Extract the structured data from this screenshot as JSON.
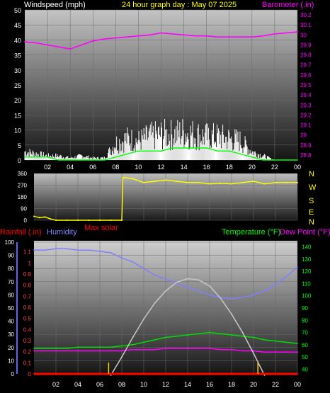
{
  "header": {
    "windspeed_label": "Windspeed (mph)",
    "title": "24 hour graph day : May 07 2025",
    "barometer_label": "Barometer (.in)"
  },
  "colors": {
    "background": "#000000",
    "wind_speed": "#ffffff",
    "wind_avg": "#00ff00",
    "barometer": "#ff00ff",
    "direction": "#ffff00",
    "humidity": "#8080ff",
    "temperature": "#00dd00",
    "dewpoint": "#ff00ff",
    "rain": "#ff0000",
    "solar": "#c8c8c8"
  },
  "direction_panel": {
    "compass": [
      "N",
      "W",
      "S",
      "E",
      "N"
    ],
    "max_solar_label": "Max solar"
  },
  "bottom_panel": {
    "rainfall_label": "Rainfall (.in)",
    "humidity_label": "Humidity",
    "temperature_label": "Temperature (°F)",
    "dewpoint_label": "Dew Point (°F)"
  },
  "chart_data": [
    {
      "type": "line",
      "name": "wind-barometer",
      "x_ticks": [
        "02",
        "04",
        "06",
        "08",
        "10",
        "12",
        "14",
        "16",
        "18",
        "20",
        "22",
        "00"
      ],
      "y_left_ticks": [
        0,
        5,
        10,
        15,
        20,
        25,
        30,
        35,
        40,
        45,
        50
      ],
      "y_left_range": [
        0,
        50
      ],
      "y_right_ticks": [
        "28.8",
        "28.9",
        "29",
        "29.1",
        "29.2",
        "29.3",
        "29.4",
        "29.5",
        "29.6",
        "29.7",
        "29.8",
        "29.9",
        "30",
        "30.1",
        "30.2"
      ],
      "y_right_range": [
        28.75,
        30.25
      ],
      "series": [
        {
          "name": "Barometer (.in)",
          "axis": "right",
          "x": [
            0,
            1,
            2,
            3,
            4,
            5,
            6,
            7,
            8,
            9,
            10,
            11,
            12,
            13,
            14,
            15,
            16,
            17,
            18,
            19,
            20,
            21,
            22,
            23,
            24
          ],
          "values": [
            29.93,
            29.92,
            29.9,
            29.88,
            29.86,
            29.9,
            29.94,
            29.96,
            29.97,
            29.98,
            29.99,
            30.0,
            30.02,
            30.01,
            30.0,
            29.99,
            29.99,
            29.98,
            29.98,
            29.98,
            29.98,
            29.99,
            30.01,
            30.02,
            30.03
          ]
        },
        {
          "name": "Windspeed (mph)",
          "axis": "left",
          "x": [
            0,
            1,
            2,
            3,
            4,
            5,
            6,
            7,
            8,
            9,
            10,
            11,
            12,
            13,
            14,
            15,
            16,
            17,
            18,
            19,
            20,
            21,
            22,
            23,
            24
          ],
          "values": [
            4,
            3,
            2,
            2,
            1,
            2,
            1,
            1,
            8,
            10,
            9,
            11,
            12,
            12,
            13,
            12,
            11,
            11,
            10,
            9,
            4,
            2,
            0,
            0,
            0
          ]
        },
        {
          "name": "Avg wind",
          "axis": "left",
          "x": [
            0,
            1,
            2,
            3,
            4,
            5,
            6,
            7,
            8,
            9,
            10,
            11,
            12,
            13,
            14,
            15,
            16,
            17,
            18,
            19,
            20,
            21,
            22,
            23,
            24
          ],
          "values": [
            1,
            1,
            1,
            0,
            0,
            0,
            0,
            0,
            1,
            2,
            3,
            3,
            3,
            4,
            4,
            4,
            4,
            3,
            3,
            2,
            1,
            0,
            0,
            0,
            0
          ]
        }
      ]
    },
    {
      "type": "line",
      "name": "wind-direction",
      "y_ticks": [
        0,
        90,
        180,
        270,
        360
      ],
      "y_range": [
        0,
        360
      ],
      "x": [
        0,
        0.5,
        1,
        1.5,
        2,
        3,
        4,
        5,
        6,
        7,
        8,
        8.1,
        9,
        10,
        11,
        12,
        13,
        14,
        15,
        16,
        17,
        18,
        19,
        20,
        21,
        22,
        23,
        24
      ],
      "values": [
        30,
        20,
        25,
        10,
        0,
        0,
        0,
        0,
        0,
        0,
        0,
        330,
        320,
        290,
        300,
        310,
        300,
        290,
        290,
        280,
        285,
        280,
        290,
        300,
        280,
        290,
        290,
        290
      ]
    },
    {
      "type": "line",
      "name": "temp-humidity",
      "x_ticks": [
        "02",
        "04",
        "06",
        "08",
        "10",
        "12",
        "14",
        "16",
        "18",
        "20",
        "22",
        "00"
      ],
      "y_humidity_ticks": [
        0,
        10,
        20,
        30,
        40,
        50,
        60,
        70,
        80,
        90,
        100
      ],
      "y_humidity_range": [
        0,
        100
      ],
      "y_rain_ticks": [
        "0",
        "0.1",
        "0.2",
        "0.3",
        "0.4",
        "0.5",
        "0.6",
        "0.7",
        "0.8",
        "0.9",
        "1",
        "1.1"
      ],
      "y_rain_range": [
        0,
        1.2
      ],
      "y_temp_ticks": [
        40,
        50,
        60,
        70,
        80,
        90,
        100,
        110,
        120,
        130,
        140
      ],
      "y_temp_range": [
        35,
        145
      ],
      "series": [
        {
          "name": "Humidity",
          "axis": "humidity",
          "x": [
            0,
            1,
            2,
            3,
            4,
            5,
            6,
            7,
            8,
            9,
            10,
            11,
            12,
            13,
            14,
            15,
            16,
            17,
            18,
            19,
            20,
            21,
            22,
            23,
            24
          ],
          "values": [
            94,
            94,
            95,
            95,
            94,
            94,
            93,
            92,
            88,
            85,
            80,
            75,
            72,
            69,
            66,
            63,
            60,
            58,
            57,
            58,
            60,
            63,
            68,
            74,
            81
          ]
        },
        {
          "name": "Temperature (°F)",
          "axis": "temp",
          "x": [
            0,
            1,
            2,
            3,
            4,
            5,
            6,
            7,
            8,
            9,
            10,
            11,
            12,
            13,
            14,
            15,
            16,
            17,
            18,
            19,
            20,
            21,
            22,
            23,
            24
          ],
          "values": [
            57,
            57,
            57,
            57,
            58,
            58,
            58,
            58,
            59,
            60,
            62,
            64,
            66,
            67,
            68,
            69,
            70,
            69,
            68,
            67,
            66,
            64,
            63,
            62,
            61
          ]
        },
        {
          "name": "Dew Point (°F)",
          "axis": "temp",
          "x": [
            0,
            1,
            2,
            3,
            4,
            5,
            6,
            7,
            8,
            9,
            10,
            11,
            12,
            13,
            14,
            15,
            16,
            17,
            18,
            19,
            20,
            21,
            22,
            23,
            24
          ],
          "values": [
            55,
            55,
            55,
            55,
            55,
            55,
            55,
            55,
            55,
            56,
            56,
            56,
            57,
            57,
            57,
            57,
            57,
            56,
            56,
            55,
            55,
            54,
            54,
            54,
            54
          ]
        },
        {
          "name": "Max solar",
          "axis": "temp",
          "x": [
            7,
            8,
            9,
            10,
            11,
            12,
            13,
            14,
            15,
            16,
            17,
            18,
            19,
            20,
            21
          ],
          "values": [
            35,
            50,
            66,
            81,
            94,
            104,
            111,
            114,
            113,
            108,
            98,
            85,
            70,
            53,
            35
          ]
        },
        {
          "name": "Rainfall (.in)",
          "axis": "rain",
          "x": [
            0,
            24
          ],
          "values": [
            0,
            0
          ]
        }
      ]
    }
  ]
}
